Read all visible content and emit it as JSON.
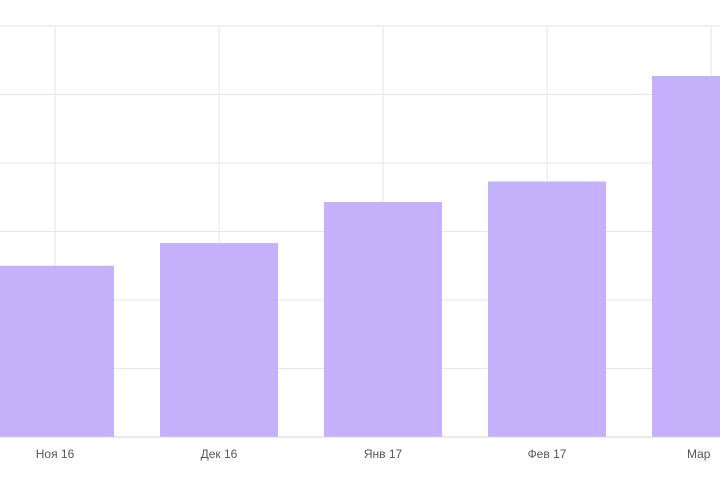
{
  "chart_data": {
    "type": "bar",
    "categories": [
      "Ноя 16",
      "Дек 16",
      "Янв 17",
      "Фев 17",
      "Мар"
    ],
    "values": [
      2.5,
      2.83,
      3.43,
      3.73,
      5.27
    ],
    "ylim": [
      0,
      6
    ],
    "grid": true,
    "bar_color": "#c4b0fb",
    "grid_color": "#e6e6e6",
    "label_color": "#555555"
  }
}
